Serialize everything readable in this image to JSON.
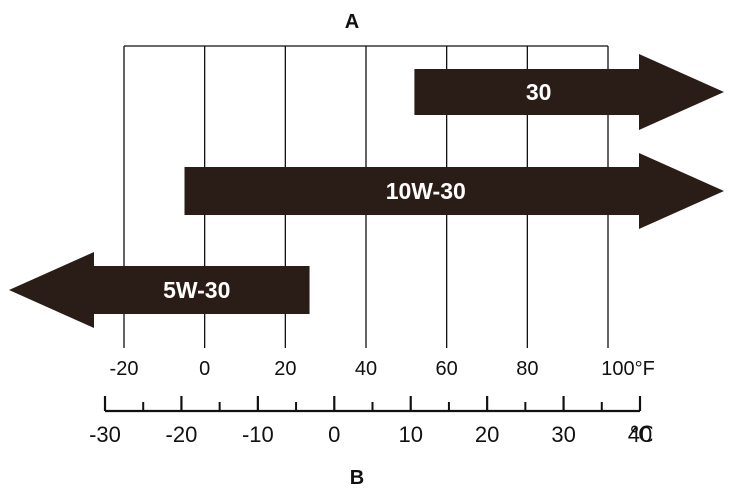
{
  "chart_data": {
    "type": "range",
    "title": "A",
    "footer_label": "B",
    "fahrenheit_axis": {
      "unit": "°F",
      "min": -20,
      "max": 100,
      "ticks": [
        "-20",
        "0",
        "20",
        "40",
        "60",
        "80",
        "100°F"
      ]
    },
    "celsius_axis": {
      "unit": "℃",
      "min": -30,
      "max": 40,
      "ticks": [
        "-30",
        "-20",
        "-10",
        "0",
        "10",
        "20",
        "30",
        "40"
      ],
      "unit_label": "℃"
    },
    "bands": [
      {
        "name": "30",
        "from_f": 52,
        "to_f": null,
        "open_end": "right"
      },
      {
        "name": "10W-30",
        "from_f": -5,
        "to_f": null,
        "open_end": "right"
      },
      {
        "name": "5W-30",
        "from_f": null,
        "to_f": 26,
        "open_end": "left"
      }
    ],
    "colors": {
      "band": "#2a1d17",
      "text": "#ffffff",
      "line": "#111111"
    },
    "grid": true
  }
}
